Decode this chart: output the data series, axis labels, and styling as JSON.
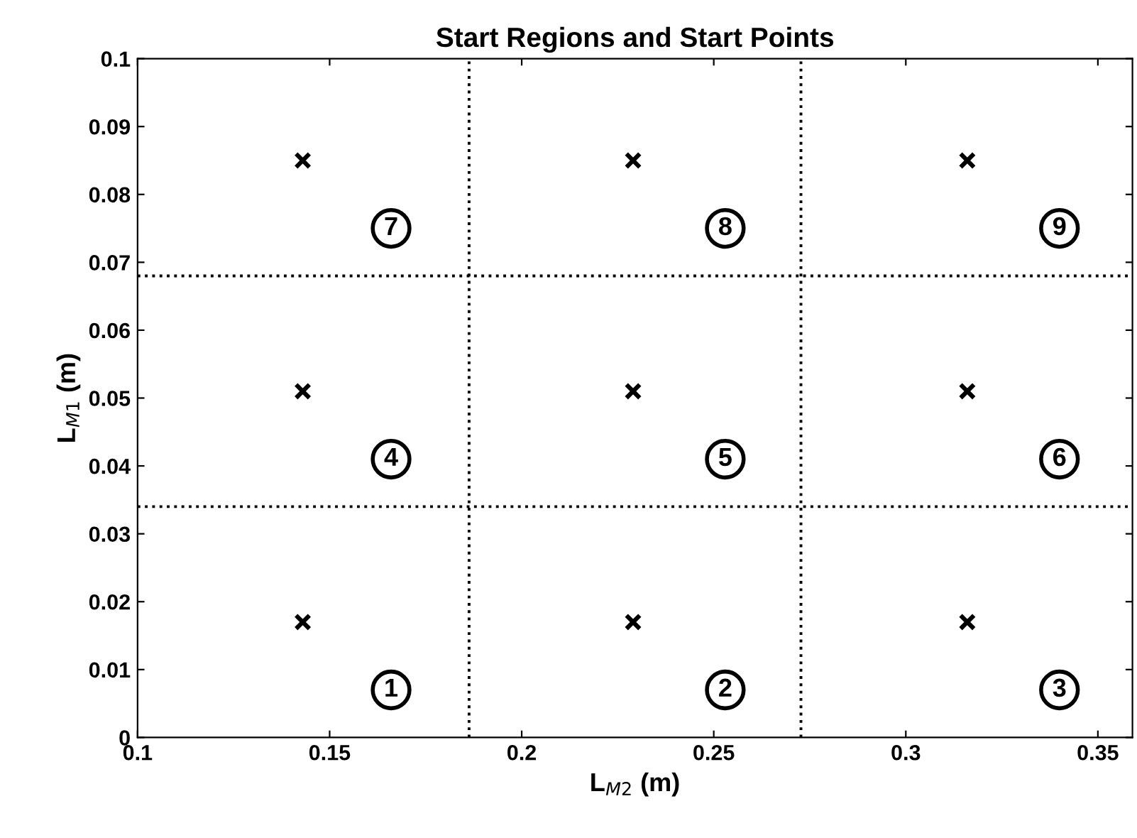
{
  "chart_data": {
    "type": "scatter",
    "title": "Start Regions and Start Points",
    "xlabel": "L$_{M2}$ (m)",
    "ylabel": "L$_{M1}$ (m)",
    "x": [
      0.143,
      0.229,
      0.316,
      0.143,
      0.229,
      0.316,
      0.143,
      0.229,
      0.316
    ],
    "series": [
      {
        "color": "#000000",
        "values": [
          0.017,
          0.017,
          0.017,
          0.051,
          0.051,
          0.051,
          0.085,
          0.085,
          0.085
        ]
      }
    ],
    "marker": "cross",
    "grid": false,
    "legend": false,
    "xlim": [
      0.1,
      0.359
    ],
    "ylim": [
      0,
      0.1
    ],
    "xticks": [
      {
        "value": 0.1,
        "label": "0.1"
      },
      0.15,
      {
        "value": 0.2,
        "label": "0.2"
      },
      0.25,
      {
        "value": 0.3,
        "label": "0.3"
      },
      0.35
    ],
    "yticks": [
      0,
      0.01,
      0.02,
      0.03,
      0.04,
      0.05,
      0.06,
      0.07,
      0.08,
      0.09,
      {
        "value": 0.1,
        "label": "0.1"
      }
    ],
    "ref_lines": [
      {
        "axis": "x",
        "value": 0.1863,
        "color": "#000000",
        "line_style": "dotted"
      },
      {
        "axis": "x",
        "value": 0.2727,
        "color": "#000000",
        "line_style": "dotted"
      },
      {
        "axis": "y",
        "value": 0.034,
        "color": "#000000",
        "line_style": "dotted"
      },
      {
        "axis": "y",
        "value": 0.068,
        "color": "#000000",
        "line_style": "dotted"
      }
    ],
    "annotations": [
      {
        "text": "1",
        "x": 0.166,
        "y": 0.007
      },
      {
        "text": "2",
        "x": 0.253,
        "y": 0.007
      },
      {
        "text": "3",
        "x": 0.34,
        "y": 0.007
      },
      {
        "text": "4",
        "x": 0.166,
        "y": 0.041
      },
      {
        "text": "5",
        "x": 0.253,
        "y": 0.041
      },
      {
        "text": "6",
        "x": 0.34,
        "y": 0.041
      },
      {
        "text": "7",
        "x": 0.166,
        "y": 0.075
      },
      {
        "text": "8",
        "x": 0.253,
        "y": 0.075
      },
      {
        "text": "9",
        "x": 0.34,
        "y": 0.075
      }
    ]
  }
}
